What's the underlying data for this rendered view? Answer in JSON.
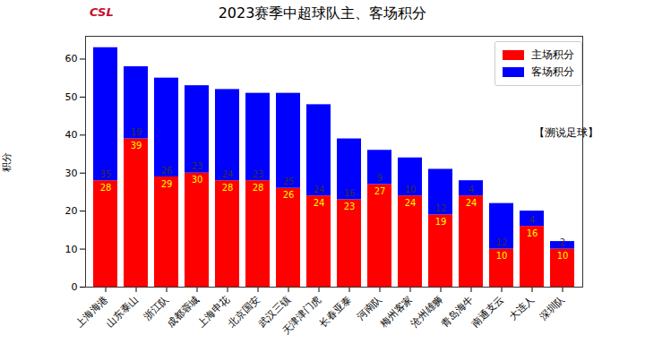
{
  "chart_data": {
    "type": "bar",
    "title": "2023赛季中超球队主、客场积分",
    "y_label": "积分",
    "categories": [
      "上海海港",
      "山东泰山",
      "浙江队",
      "成都蓉城",
      "上海申花",
      "北京国安",
      "武汉三镇",
      "天津津门虎",
      "长春亚泰",
      "河南队",
      "梅州客家",
      "沧州雄狮",
      "青岛海牛",
      "南通支云",
      "大连人",
      "深圳队"
    ],
    "series": [
      {
        "name": "主场积分",
        "color": "#ff0000",
        "values": [
          28,
          39,
          29,
          30,
          28,
          28,
          26,
          24,
          23,
          27,
          24,
          19,
          24,
          10,
          16,
          10
        ]
      },
      {
        "name": "客场积分",
        "color": "#0000ff",
        "values": [
          35,
          19,
          26,
          23,
          24,
          23,
          25,
          24,
          16,
          9,
          10,
          12,
          4,
          12,
          4,
          2
        ]
      }
    ],
    "stacked": true,
    "data_labels": true,
    "legend": "upper right",
    "ylim": [
      0,
      66
    ],
    "yticks": [
      0,
      10,
      20,
      30,
      40,
      50,
      60
    ],
    "annotations": [
      "CSL",
      "【溯说足球】"
    ]
  }
}
